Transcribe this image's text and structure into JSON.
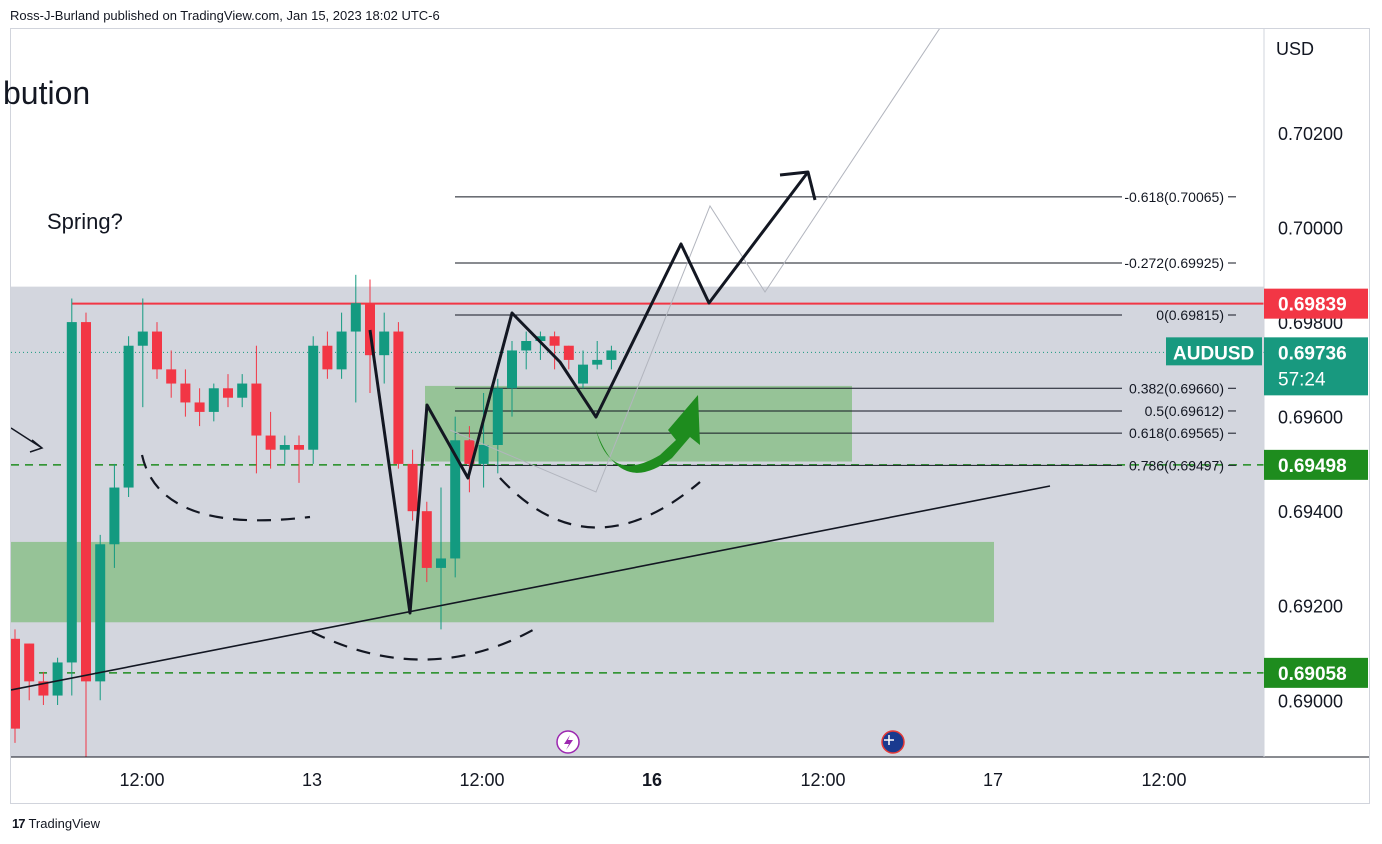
{
  "header": {
    "publish_line": "Ross-J-Burland published on TradingView.com, Jan 15, 2023 18:02 UTC-6"
  },
  "footer": {
    "brand": "TradingView",
    "logo_icon": "tradingview-logo-icon"
  },
  "colors": {
    "bull": "#139a80",
    "bear": "#f23645",
    "resistance": "#f23645",
    "support": "#1e8c1e",
    "zone": "#8bbf8b",
    "range": "#d1d4dc",
    "last_price": "#18997f"
  },
  "chart_data": {
    "type": "candlestick",
    "title": "",
    "symbol": "AUDUSD",
    "currency": "USD",
    "partial_title": "bution",
    "annotation": "Spring?",
    "ylim": [
      0.6888,
      0.7042
    ],
    "y_ticks": [
      "0.69000",
      "0.69200",
      "0.69400",
      "0.69600",
      "0.69800",
      "0.70000",
      "0.70200"
    ],
    "x_ticks": [
      {
        "label": "12:00",
        "bold": false
      },
      {
        "label": "13",
        "bold": false
      },
      {
        "label": "12:00",
        "bold": false
      },
      {
        "label": "16",
        "bold": true
      },
      {
        "label": "12:00",
        "bold": false
      },
      {
        "label": "17",
        "bold": false
      },
      {
        "label": "12:00",
        "bold": false
      }
    ],
    "candles": [
      {
        "o": 0.6913,
        "h": 0.6915,
        "l": 0.6891,
        "c": 0.6894
      },
      {
        "o": 0.6912,
        "h": 0.6912,
        "l": 0.69,
        "c": 0.6904
      },
      {
        "o": 0.6904,
        "h": 0.6906,
        "l": 0.6899,
        "c": 0.6901
      },
      {
        "o": 0.6901,
        "h": 0.6909,
        "l": 0.6899,
        "c": 0.6908
      },
      {
        "o": 0.6908,
        "h": 0.6985,
        "l": 0.6901,
        "c": 0.698
      },
      {
        "o": 0.698,
        "h": 0.6982,
        "l": 0.6888,
        "c": 0.6904
      },
      {
        "o": 0.6904,
        "h": 0.6935,
        "l": 0.69,
        "c": 0.6933
      },
      {
        "o": 0.6933,
        "h": 0.695,
        "l": 0.6928,
        "c": 0.6945
      },
      {
        "o": 0.6945,
        "h": 0.6977,
        "l": 0.6943,
        "c": 0.6975
      },
      {
        "o": 0.6975,
        "h": 0.6985,
        "l": 0.6962,
        "c": 0.6978
      },
      {
        "o": 0.6978,
        "h": 0.698,
        "l": 0.6968,
        "c": 0.697
      },
      {
        "o": 0.697,
        "h": 0.6974,
        "l": 0.6964,
        "c": 0.6967
      },
      {
        "o": 0.6967,
        "h": 0.697,
        "l": 0.696,
        "c": 0.6963
      },
      {
        "o": 0.6963,
        "h": 0.6966,
        "l": 0.6958,
        "c": 0.6961
      },
      {
        "o": 0.6961,
        "h": 0.6967,
        "l": 0.6959,
        "c": 0.6966
      },
      {
        "o": 0.6966,
        "h": 0.6969,
        "l": 0.6962,
        "c": 0.6964
      },
      {
        "o": 0.6964,
        "h": 0.6969,
        "l": 0.6962,
        "c": 0.6967
      },
      {
        "o": 0.6967,
        "h": 0.6975,
        "l": 0.6948,
        "c": 0.6956
      },
      {
        "o": 0.6956,
        "h": 0.6961,
        "l": 0.6949,
        "c": 0.6953
      },
      {
        "o": 0.6953,
        "h": 0.6956,
        "l": 0.695,
        "c": 0.6954
      },
      {
        "o": 0.6954,
        "h": 0.6956,
        "l": 0.6946,
        "c": 0.6953
      },
      {
        "o": 0.6953,
        "h": 0.6977,
        "l": 0.695,
        "c": 0.6975
      },
      {
        "o": 0.6975,
        "h": 0.6978,
        "l": 0.6968,
        "c": 0.697
      },
      {
        "o": 0.697,
        "h": 0.6982,
        "l": 0.6968,
        "c": 0.6978
      },
      {
        "o": 0.6978,
        "h": 0.699,
        "l": 0.6963,
        "c": 0.6984
      },
      {
        "o": 0.6984,
        "h": 0.6989,
        "l": 0.6965,
        "c": 0.6973
      },
      {
        "o": 0.6973,
        "h": 0.6982,
        "l": 0.6967,
        "c": 0.6978
      },
      {
        "o": 0.6978,
        "h": 0.698,
        "l": 0.6949,
        "c": 0.695
      },
      {
        "o": 0.695,
        "h": 0.6953,
        "l": 0.6938,
        "c": 0.694
      },
      {
        "o": 0.694,
        "h": 0.6942,
        "l": 0.6925,
        "c": 0.6928
      },
      {
        "o": 0.6928,
        "h": 0.6945,
        "l": 0.6915,
        "c": 0.693
      },
      {
        "o": 0.693,
        "h": 0.696,
        "l": 0.6926,
        "c": 0.6955
      },
      {
        "o": 0.6955,
        "h": 0.6958,
        "l": 0.6944,
        "c": 0.695
      },
      {
        "o": 0.695,
        "h": 0.6965,
        "l": 0.6945,
        "c": 0.6954
      },
      {
        "o": 0.6954,
        "h": 0.6968,
        "l": 0.6948,
        "c": 0.6966
      },
      {
        "o": 0.6966,
        "h": 0.6976,
        "l": 0.696,
        "c": 0.6974
      },
      {
        "o": 0.6974,
        "h": 0.6978,
        "l": 0.697,
        "c": 0.6976
      },
      {
        "o": 0.6976,
        "h": 0.6978,
        "l": 0.6972,
        "c": 0.6977
      },
      {
        "o": 0.6977,
        "h": 0.6978,
        "l": 0.697,
        "c": 0.6975
      },
      {
        "o": 0.6975,
        "h": 0.6975,
        "l": 0.697,
        "c": 0.6972
      },
      {
        "o": 0.6967,
        "h": 0.6974,
        "l": 0.6966,
        "c": 0.6971
      },
      {
        "o": 0.6971,
        "h": 0.6976,
        "l": 0.697,
        "c": 0.6972
      },
      {
        "o": 0.6972,
        "h": 0.6975,
        "l": 0.697,
        "c": 0.6974
      }
    ],
    "horizontal_levels": [
      {
        "name": "resistance",
        "value": 0.69839,
        "label": "0.69839",
        "color": "#f23645",
        "style": "solid"
      },
      {
        "name": "support-upper",
        "value": 0.69498,
        "label": "0.69498",
        "color": "#1e8c1e",
        "style": "dashed"
      },
      {
        "name": "support-lower",
        "value": 0.69058,
        "label": "0.69058",
        "color": "#1e8c1e",
        "style": "dashed"
      }
    ],
    "fibonacci": [
      {
        "ratio": "-0.618",
        "value": 0.70065,
        "label": "-0.618(0.70065)"
      },
      {
        "ratio": "-0.272",
        "value": 0.69925,
        "label": "-0.272(0.69925)"
      },
      {
        "ratio": "0",
        "value": 0.69815,
        "label": "0(0.69815)"
      },
      {
        "ratio": "0.382",
        "value": 0.6966,
        "label": "0.382(0.69660)"
      },
      {
        "ratio": "0.5",
        "value": 0.69612,
        "label": "0.5(0.69612)"
      },
      {
        "ratio": "0.618",
        "value": 0.69565,
        "label": "0.618(0.69565)"
      },
      {
        "ratio": "0.786",
        "value": 0.69497,
        "label": "0.786(0.69497)"
      }
    ],
    "last_price": {
      "symbol": "AUDUSD",
      "value": 0.69736,
      "label": "0.69736",
      "countdown": "57:24"
    },
    "range_box": {
      "top": 0.69875,
      "bottom": 0.6888
    },
    "zones": [
      {
        "name": "upper-demand-zone",
        "top": 0.69665,
        "bottom": 0.69505
      },
      {
        "name": "lower-demand-zone",
        "top": 0.69335,
        "bottom": 0.69165
      }
    ],
    "events": [
      {
        "name": "flash-event-icon"
      },
      {
        "name": "australia-flag-event-icon"
      }
    ]
  }
}
